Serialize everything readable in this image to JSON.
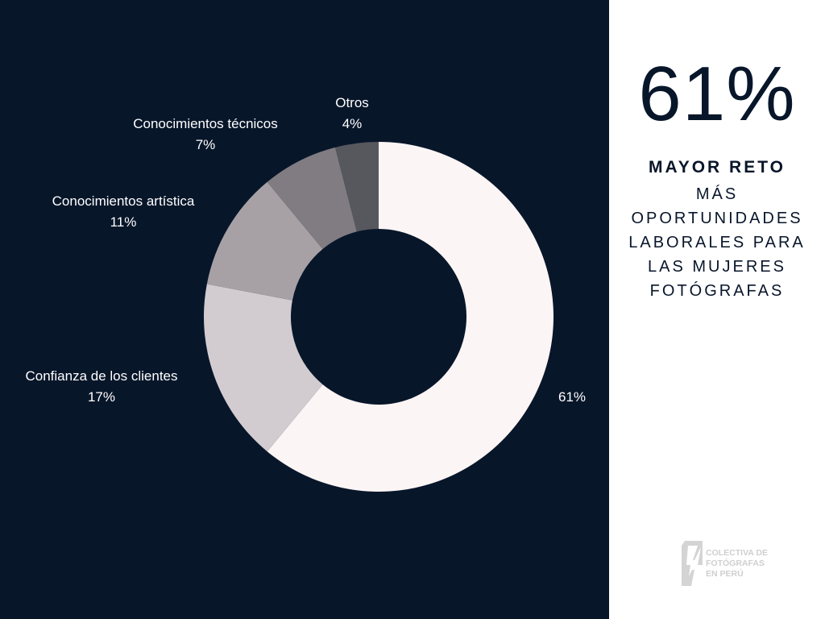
{
  "chart_data": {
    "type": "pie",
    "variant": "donut",
    "slices": [
      {
        "label": "",
        "value": 61,
        "value_label": "61%",
        "color": "#fcf5f5"
      },
      {
        "label": "Confianza de los clientes",
        "value": 17,
        "value_label": "17%",
        "color": "#d2ccd1"
      },
      {
        "label": "Conocimientos artística",
        "value": 11,
        "value_label": "11%",
        "color": "#a7a1a6"
      },
      {
        "label": "Conocimientos técnicos",
        "value": 7,
        "value_label": "7%",
        "color": "#807c81"
      },
      {
        "label": "Otros",
        "value": 4,
        "value_label": "4%",
        "color": "#57575e"
      }
    ]
  },
  "highlight": {
    "percent": "61%",
    "title": "MAYOR RETO",
    "description": "MÁS OPORTUNIDADES LABORALES PARA LAS MUJERES FOTÓGRAFAS"
  },
  "logo": {
    "lines": [
      "COLECTIVA DE",
      "FOTÓGRAFAS",
      "EN PERÚ"
    ]
  },
  "colors": {
    "background": "#08162a",
    "panel": "#ffffff",
    "text_dark": "#08162a",
    "text_light": "#ffffff"
  }
}
